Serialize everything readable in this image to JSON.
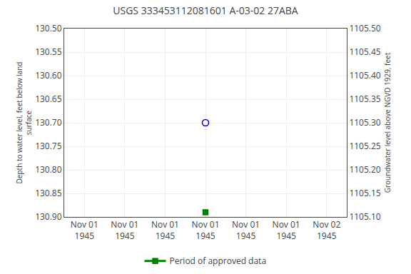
{
  "chart_data": {
    "type": "scatter",
    "title": "USGS 333453112081601 A-03-02 27ABA",
    "categories": [
      "Nov 01\n1945",
      "Nov 01\n1945",
      "Nov 01\n1945",
      "Nov 01\n1945",
      "Nov 01\n1945",
      "Nov 01\n1945",
      "Nov 02\n1945"
    ],
    "ylabel": "Depth to water level, feet below land\nsurface",
    "y2label": "Groundwater level above NGVD 1929, feet",
    "ylim": [
      130.9,
      130.5
    ],
    "yticks": [
      {
        "value": 130.5,
        "label": "130.50"
      },
      {
        "value": 130.55,
        "label": "130.55"
      },
      {
        "value": 130.6,
        "label": "130.60"
      },
      {
        "value": 130.65,
        "label": "130.65"
      },
      {
        "value": 130.7,
        "label": "130.70"
      },
      {
        "value": 130.75,
        "label": "130.75"
      },
      {
        "value": 130.8,
        "label": "130.80"
      },
      {
        "value": 130.85,
        "label": "130.85"
      },
      {
        "value": 130.9,
        "label": "130.90"
      }
    ],
    "y2lim": [
      1105.1,
      1105.5
    ],
    "y2ticks": [
      {
        "value": 1105.5,
        "label": "1105.50"
      },
      {
        "value": 1105.45,
        "label": "1105.45"
      },
      {
        "value": 1105.4,
        "label": "1105.40"
      },
      {
        "value": 1105.35,
        "label": "1105.35"
      },
      {
        "value": 1105.3,
        "label": "1105.30"
      },
      {
        "value": 1105.25,
        "label": "1105.25"
      },
      {
        "value": 1105.2,
        "label": "1105.20"
      },
      {
        "value": 1105.15,
        "label": "1105.15"
      },
      {
        "value": 1105.1,
        "label": "1105.10"
      }
    ],
    "grid": true,
    "legend": "bottom",
    "series": [
      {
        "values": [
          null,
          null,
          null,
          130.7,
          null,
          null,
          null
        ],
        "color": "#0000cc",
        "marker": "open circle"
      },
      {
        "name": "Period of approved data",
        "values": [
          null,
          null,
          null,
          130.89,
          null,
          null,
          null
        ],
        "color": "#008000",
        "marker": "square",
        "line_style": "solid"
      }
    ]
  }
}
